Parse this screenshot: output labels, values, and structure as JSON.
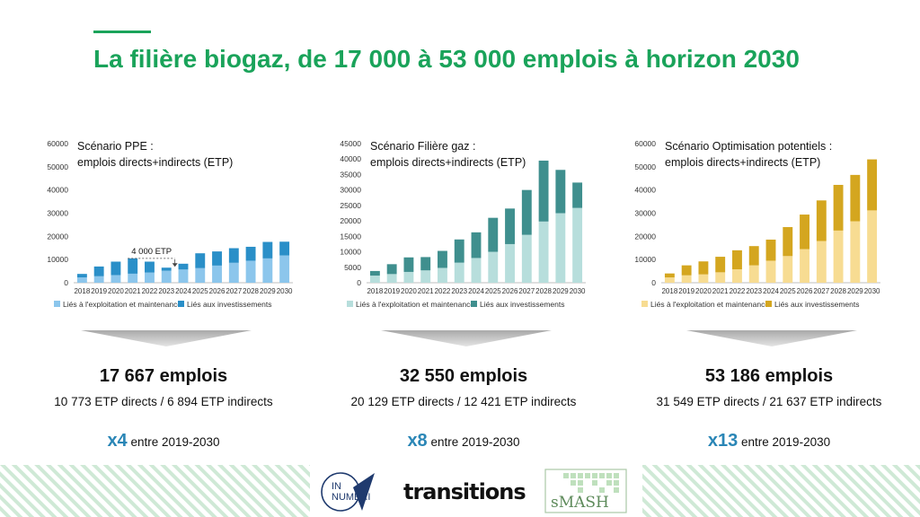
{
  "title": "La filière biogaz, de 17 000 à 53 000 emplois à horizon 2030",
  "colors": {
    "title_green": "#1aa35a",
    "ppe_exploitation": "#8cc6ec",
    "ppe_investissements": "#2a8fc8",
    "gaz_exploitation": "#b7dedc",
    "gaz_investissements": "#3f8f8e",
    "opt_exploitation": "#f7dc92",
    "opt_investissements": "#d4a61f",
    "multiplier_blue": "#2a86b6"
  },
  "chart_data": [
    {
      "type": "bar",
      "stacked": true,
      "caption_line1": "Scénario PPE :",
      "caption_line2": "emplois directs+indirects (ETP)",
      "categories": [
        "2018",
        "2019",
        "2020",
        "2021",
        "2022",
        "2023",
        "2024",
        "2025",
        "2026",
        "2027",
        "2028",
        "2029",
        "2030"
      ],
      "yticks": [
        "0",
        "10000",
        "20000",
        "30000",
        "40000",
        "50000",
        "60000"
      ],
      "ylim": [
        0,
        60000
      ],
      "grid": false,
      "legend_position": "bottom",
      "annotation": "4 000 ETP",
      "series": [
        {
          "name": "Liés à l'exploitation et maintenance",
          "values": [
            2300,
            2800,
            3300,
            3900,
            4400,
            5200,
            5700,
            6300,
            7400,
            8600,
            9500,
            10500,
            11800
          ]
        },
        {
          "name": "Liés aux investissements",
          "values": [
            1500,
            4200,
            5800,
            6600,
            4700,
            1300,
            2500,
            6400,
            6100,
            6300,
            6000,
            7100,
            5900
          ]
        }
      ]
    },
    {
      "type": "bar",
      "stacked": true,
      "caption_line1": "Scénario Filière gaz :",
      "caption_line2": "emplois directs+indirects (ETP)",
      "categories": [
        "2018",
        "2019",
        "2020",
        "2021",
        "2022",
        "2023",
        "2024",
        "2025",
        "2026",
        "2027",
        "2028",
        "2029",
        "2030"
      ],
      "yticks": [
        "0",
        "5000",
        "10000",
        "15000",
        "20000",
        "25000",
        "30000",
        "35000",
        "40000",
        "45000"
      ],
      "ylim": [
        0,
        45000
      ],
      "grid": false,
      "legend_position": "bottom",
      "series": [
        {
          "name": "Liés à l'exploitation et maintenance",
          "values": [
            2300,
            2800,
            3500,
            4000,
            4800,
            6500,
            8000,
            10000,
            12500,
            15500,
            19800,
            22500,
            24200
          ]
        },
        {
          "name": "Liés aux investissements",
          "values": [
            1500,
            3200,
            4700,
            4300,
            5500,
            7500,
            8300,
            11000,
            11500,
            14500,
            19700,
            14000,
            8200
          ]
        }
      ]
    },
    {
      "type": "bar",
      "stacked": true,
      "caption_line1": "Scénario Optimisation potentiels :",
      "caption_line2": "emplois directs+indirects (ETP)",
      "categories": [
        "2018",
        "2019",
        "2020",
        "2021",
        "2022",
        "2023",
        "2024",
        "2025",
        "2026",
        "2027",
        "2028",
        "2029",
        "2030"
      ],
      "yticks": [
        "0",
        "10000",
        "20000",
        "30000",
        "40000",
        "50000",
        "60000"
      ],
      "ylim": [
        0,
        60000
      ],
      "grid": false,
      "legend_position": "bottom",
      "series": [
        {
          "name": "Liés à l'exploitation et maintenance",
          "values": [
            2300,
            3200,
            3600,
            4500,
            5800,
            7500,
            9500,
            11500,
            14500,
            18000,
            22500,
            26500,
            31200
          ]
        },
        {
          "name": "Liés aux investissements",
          "values": [
            1700,
            4300,
            5600,
            6700,
            8200,
            8300,
            9100,
            12500,
            14900,
            17500,
            19700,
            20000,
            22000
          ]
        }
      ]
    }
  ],
  "summaries": [
    {
      "total": "17 667 emplois",
      "detail": "10 773 ETP directs / 6 894 ETP indirects",
      "multiplier": "x4",
      "period": "entre 2019-2030"
    },
    {
      "total": "32 550 emplois",
      "detail": "20 129 ETP directs / 12 421 ETP indirects",
      "multiplier": "x8",
      "period": "entre 2019-2030"
    },
    {
      "total": "53 186 emplois",
      "detail": "31 549 ETP directs / 21 637 ETP indirects",
      "multiplier": "x13",
      "period": "entre 2019-2030"
    }
  ],
  "logos": {
    "numeri_line1": "IN",
    "numeri_line2": "NUMERI",
    "transitions": "transitions",
    "smash": "sMASH"
  }
}
